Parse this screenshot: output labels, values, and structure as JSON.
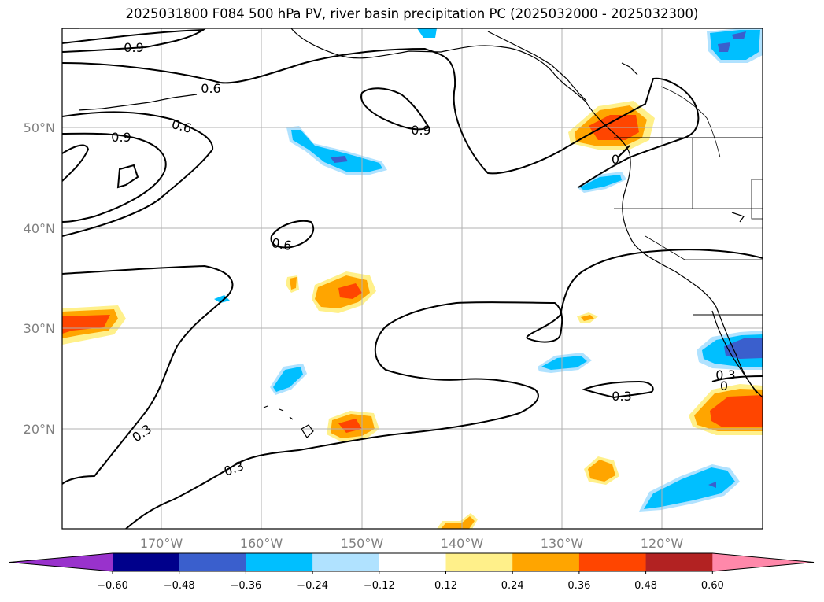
{
  "title": "2025031800 F084 500 hPa PV, river basin precipitation PC (2025032000 - 2025032300)",
  "lat_labels": [
    "50°N",
    "40°N",
    "30°N",
    "20°N"
  ],
  "lon_labels": [
    "170°W",
    "160°W",
    "150°W",
    "140°W",
    "130°W",
    "120°W"
  ],
  "contour_labels": [
    "0.9",
    "0.6",
    "0.6",
    "0.9",
    "0.9",
    "0.6",
    "0.3",
    "0.3",
    "0.3",
    "0",
    "0",
    "0.3"
  ],
  "colorbar": {
    "ticks": [
      "−0.60",
      "−0.48",
      "−0.36",
      "−0.24",
      "−0.12",
      "0.12",
      "0.24",
      "0.36",
      "0.48",
      "0.60"
    ],
    "colors": [
      "#9932cc",
      "#00008b",
      "#3a5fcd",
      "#00bfff",
      "#b0e2ff",
      "#ffffff",
      "#fff08a",
      "#ffa500",
      "#ff4500",
      "#b22222",
      "#ff88aa"
    ]
  },
  "colors": {
    "pos1": "#fff08a",
    "pos2": "#ffa500",
    "pos3": "#ff4500",
    "neg1": "#b0e2ff",
    "neg2": "#00bfff",
    "neg3": "#3a5fcd",
    "grid": "#b0b0b0",
    "label_gray": "#808080"
  }
}
